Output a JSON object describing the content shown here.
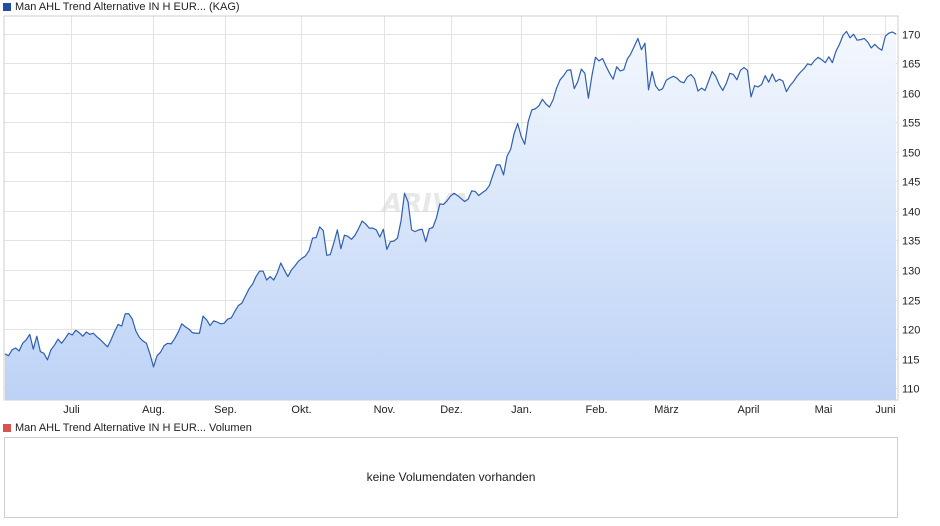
{
  "legend_top": {
    "label": "Man AHL Trend Alternative IN H EUR... (KAG)",
    "color": "#1f4ea3"
  },
  "legend_bottom": {
    "label": "Man AHL Trend Alternative IN H EUR... Volumen",
    "color": "#d9534f"
  },
  "watermark": "ARIVA.DE",
  "volume": {
    "message": "keine Volumendaten vorhanden"
  },
  "colors": {
    "line": "#2f5fb3",
    "fill_top": "#f4f8fe",
    "fill_bottom": "#bcd2f6",
    "grid": "#e3e3e3",
    "border": "#cfcfcf"
  },
  "chart_data": {
    "type": "area",
    "title": "",
    "xlabel": "",
    "ylabel": "",
    "ylim": [
      108,
      173
    ],
    "y_ticks": [
      110,
      115,
      120,
      125,
      130,
      135,
      140,
      145,
      150,
      155,
      160,
      165,
      170
    ],
    "x_ticks": [
      "Juli",
      "Aug.",
      "Sep.",
      "Okt.",
      "Nov.",
      "Dez.",
      "Jan.",
      "Feb.",
      "März",
      "April",
      "Mai",
      "Juni"
    ],
    "grid": true,
    "series": [
      {
        "values": [
          115.8,
          115.5,
          116.5,
          116.8,
          116.3,
          117.6,
          118.2,
          119.1,
          116.6,
          118.8,
          116.2,
          115.9,
          114.8,
          116.5,
          117.3,
          118.3,
          117.6,
          118.4,
          119.3,
          119.0,
          119.8,
          119.4,
          118.8,
          119.5,
          119.1,
          119.3,
          118.7,
          118.2,
          117.6,
          117.0,
          118.2,
          119.6,
          120.8,
          120.5,
          122.6,
          122.6,
          121.7,
          119.7,
          118.6,
          118.0,
          117.6,
          115.8,
          113.6,
          115.5,
          116.1,
          117.2,
          117.6,
          117.5,
          118.4,
          119.5,
          120.9,
          120.4,
          120.0,
          119.4,
          119.3,
          119.3,
          122.2,
          121.6,
          120.6,
          121.4,
          121.2,
          120.9,
          121.0,
          121.7,
          121.9,
          123.0,
          124.0,
          124.4,
          125.6,
          126.8,
          127.6,
          128.9,
          129.8,
          129.8,
          128.3,
          128.9,
          128.3,
          129.5,
          131.2,
          130.0,
          128.9,
          130.0,
          130.7,
          131.5,
          132.0,
          132.4,
          133.3,
          135.4,
          135.5,
          137.3,
          136.7,
          132.5,
          132.6,
          134.6,
          136.8,
          133.6,
          135.9,
          135.7,
          135.2,
          135.9,
          137.0,
          138.3,
          137.8,
          137.1,
          137.1,
          136.8,
          135.6,
          136.9,
          133.5,
          134.8,
          134.9,
          135.4,
          138.3,
          143.0,
          141.5,
          136.8,
          136.5,
          136.8,
          136.9,
          134.8,
          137.0,
          137.2,
          138.8,
          141.2,
          141.1,
          141.7,
          142.5,
          143.0,
          142.6,
          142.1,
          141.6,
          142.0,
          143.4,
          143.3,
          142.6,
          143.1,
          143.5,
          144.3,
          146.1,
          147.8,
          147.8,
          146.1,
          149.3,
          150.4,
          153.1,
          154.8,
          152.6,
          151.3,
          155.2,
          157.1,
          157.3,
          157.8,
          158.9,
          158.1,
          157.6,
          158.8,
          160.8,
          162.2,
          162.9,
          163.8,
          163.9,
          160.7,
          161.9,
          164.0,
          163.3,
          159.1,
          162.9,
          166.0,
          165.4,
          165.8,
          164.5,
          163.3,
          162.3,
          164.4,
          163.7,
          163.9,
          165.7,
          166.6,
          167.9,
          169.2,
          167.3,
          168.4,
          160.5,
          163.6,
          161.2,
          160.4,
          160.7,
          162.1,
          162.5,
          162.8,
          162.5,
          161.9,
          161.7,
          162.7,
          163.1,
          162.4,
          160.3,
          160.8,
          160.4,
          162.0,
          163.6,
          162.8,
          161.4,
          160.4,
          161.6,
          163.3,
          163.1,
          162.2,
          163.8,
          164.3,
          163.8,
          159.3,
          161.2,
          161.0,
          161.4,
          162.9,
          161.8,
          163.2,
          161.9,
          162.3,
          162.0,
          160.2,
          161.2,
          161.9,
          162.8,
          163.5,
          164.1,
          164.9,
          164.7,
          165.5,
          166.0,
          165.6,
          165.1,
          166.1,
          165.1,
          167.0,
          168.2,
          169.7,
          170.4,
          169.3,
          169.9,
          168.9,
          169.0,
          169.2,
          168.6,
          167.6,
          168.2,
          167.6,
          167.2,
          169.6,
          170.1,
          170.3,
          169.9
        ]
      }
    ]
  }
}
